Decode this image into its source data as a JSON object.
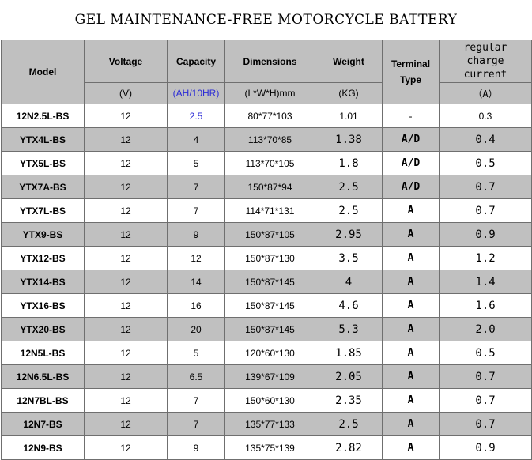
{
  "title": "GEL MAINTENANCE-FREE MOTORCYCLE BATTERY",
  "headers": {
    "model": "Model",
    "voltage": "Voltage",
    "voltage_unit": "(V)",
    "capacity": "Capacity",
    "capacity_unit": "(AH/10HR)",
    "dimensions": "Dimensions",
    "dimensions_unit": "(L*W*H)mm",
    "weight": "Weight",
    "weight_unit": "(KG)",
    "terminal_line1": "Terminal",
    "terminal_line2": "Type",
    "charge_line1": "regular",
    "charge_line2": "charge",
    "charge_line3": "current",
    "charge_unit": "（A）"
  },
  "colors": {
    "header_bg": "#c0c0c0",
    "alt_row_bg": "#c0c0c0",
    "accent_blue": "#2b2bd6"
  },
  "rows": [
    {
      "model": "12N2.5L-BS",
      "voltage": "12",
      "capacity": "2.5",
      "dimensions": "80*77*103",
      "weight": "1.01",
      "terminal": "-",
      "charge": "0.3"
    },
    {
      "model": "YTX4L-BS",
      "voltage": "12",
      "capacity": "4",
      "dimensions": "113*70*85",
      "weight": "1.38",
      "terminal": "A/D",
      "charge": "0.4"
    },
    {
      "model": "YTX5L-BS",
      "voltage": "12",
      "capacity": "5",
      "dimensions": "113*70*105",
      "weight": "1.8",
      "terminal": "A/D",
      "charge": "0.5"
    },
    {
      "model": "YTX7A-BS",
      "voltage": "12",
      "capacity": "7",
      "dimensions": "150*87*94",
      "weight": "2.5",
      "terminal": "A/D",
      "charge": "0.7"
    },
    {
      "model": "YTX7L-BS",
      "voltage": "12",
      "capacity": "7",
      "dimensions": "114*71*131",
      "weight": "2.5",
      "terminal": "A",
      "charge": "0.7"
    },
    {
      "model": "YTX9-BS",
      "voltage": "12",
      "capacity": "9",
      "dimensions": "150*87*105",
      "weight": "2.95",
      "terminal": "A",
      "charge": "0.9"
    },
    {
      "model": "YTX12-BS",
      "voltage": "12",
      "capacity": "12",
      "dimensions": "150*87*130",
      "weight": "3.5",
      "terminal": "A",
      "charge": "1.2"
    },
    {
      "model": "YTX14-BS",
      "voltage": "12",
      "capacity": "14",
      "dimensions": "150*87*145",
      "weight": "4",
      "terminal": "A",
      "charge": "1.4"
    },
    {
      "model": "YTX16-BS",
      "voltage": "12",
      "capacity": "16",
      "dimensions": "150*87*145",
      "weight": "4.6",
      "terminal": "A",
      "charge": "1.6"
    },
    {
      "model": "YTX20-BS",
      "voltage": "12",
      "capacity": "20",
      "dimensions": "150*87*145",
      "weight": "5.3",
      "terminal": "A",
      "charge": "2.0"
    },
    {
      "model": "12N5L-BS",
      "voltage": "12",
      "capacity": "5",
      "dimensions": "120*60*130",
      "weight": "1.85",
      "terminal": "A",
      "charge": "0.5"
    },
    {
      "model": "12N6.5L-BS",
      "voltage": "12",
      "capacity": "6.5",
      "dimensions": "139*67*109",
      "weight": "2.05",
      "terminal": "A",
      "charge": "0.7"
    },
    {
      "model": "12N7BL-BS",
      "voltage": "12",
      "capacity": "7",
      "dimensions": "150*60*130",
      "weight": "2.35",
      "terminal": "A",
      "charge": "0.7"
    },
    {
      "model": "12N7-BS",
      "voltage": "12",
      "capacity": "7",
      "dimensions": "135*77*133",
      "weight": "2.5",
      "terminal": "A",
      "charge": "0.7"
    },
    {
      "model": "12N9-BS",
      "voltage": "12",
      "capacity": "9",
      "dimensions": "135*75*139",
      "weight": "2.82",
      "terminal": "A",
      "charge": "0.9"
    }
  ]
}
